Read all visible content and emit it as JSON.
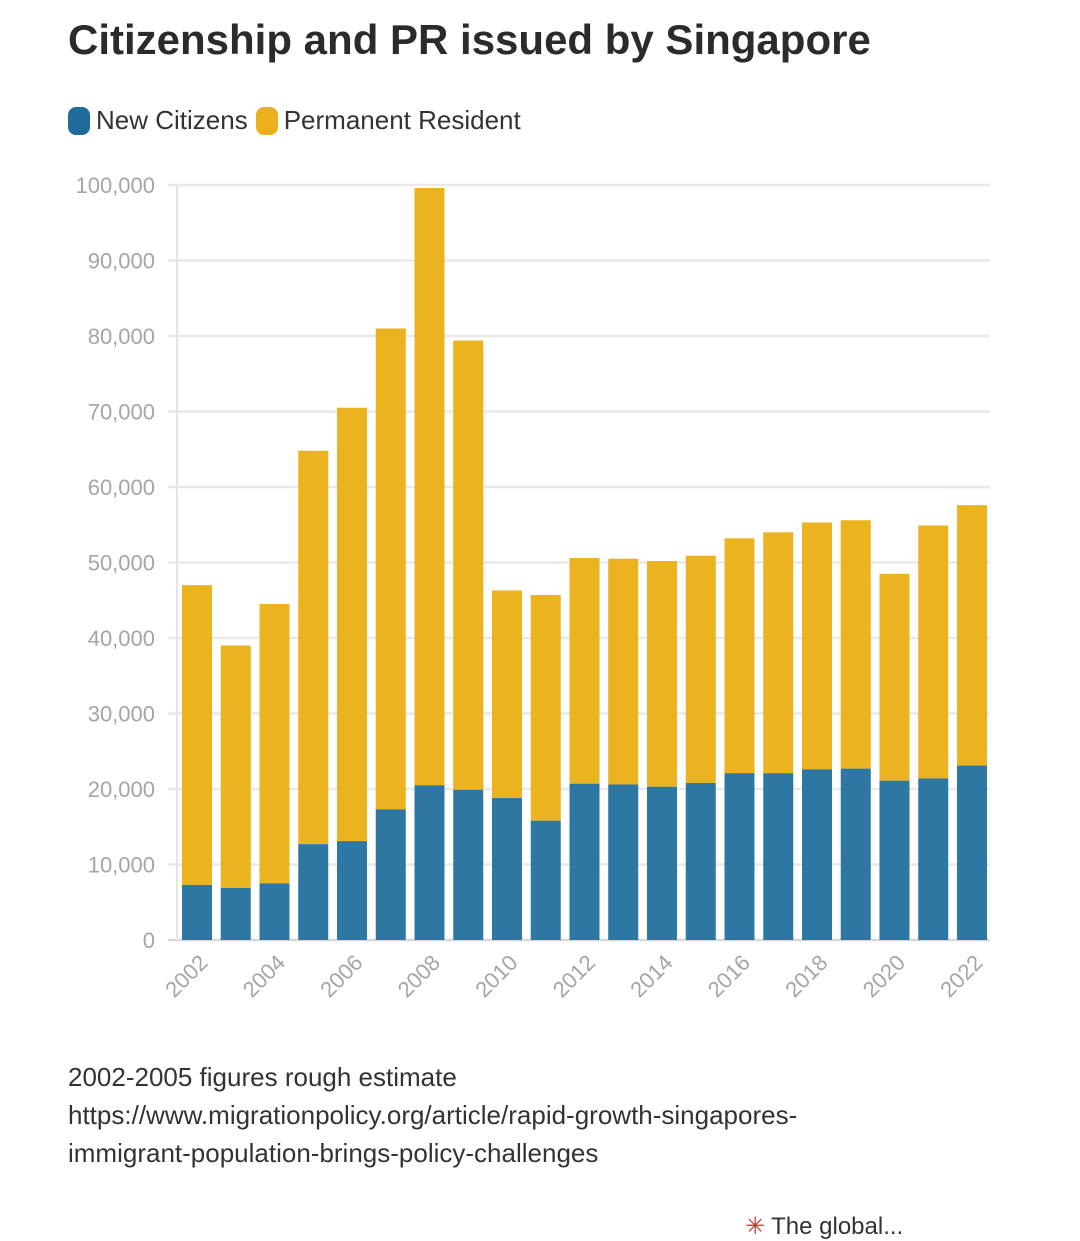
{
  "title": "Citizenship and PR issued by Singapore",
  "legend": [
    {
      "label": "New Citizens",
      "color": "#1f6b9a"
    },
    {
      "label": "Permanent Resident",
      "color": "#ecb01d"
    }
  ],
  "footer": {
    "note": "2002-2005 figures rough estimate",
    "source_line1": "https://www.migrationpolicy.org/article/rapid-growth-singapores-",
    "source_line2": "immigrant-population-brings-policy-challenges"
  },
  "watermark": {
    "text": "The global..."
  },
  "chart_data": {
    "type": "bar",
    "stacked": true,
    "title": "Citizenship and PR issued by Singapore",
    "xlabel": "",
    "ylabel": "",
    "ylim": [
      0,
      100000
    ],
    "yticks": [
      0,
      10000,
      20000,
      30000,
      40000,
      50000,
      60000,
      70000,
      80000,
      90000,
      100000
    ],
    "ytick_labels": [
      "0",
      "10,000",
      "20,000",
      "30,000",
      "40,000",
      "50,000",
      "60,000",
      "70,000",
      "80,000",
      "90,000",
      "100,000"
    ],
    "categories": [
      "2002",
      "2003",
      "2004",
      "2005",
      "2006",
      "2007",
      "2008",
      "2009",
      "2010",
      "2011",
      "2012",
      "2013",
      "2014",
      "2015",
      "2016",
      "2017",
      "2018",
      "2019",
      "2020",
      "2021",
      "2022"
    ],
    "xtick_labels": [
      "2002",
      "2004",
      "2006",
      "2008",
      "2010",
      "2012",
      "2014",
      "2016",
      "2018",
      "2020",
      "2022"
    ],
    "series": [
      {
        "name": "New Citizens",
        "color": "#2f77a3",
        "values": [
          7300,
          6900,
          7500,
          12700,
          13100,
          17300,
          20500,
          19900,
          18800,
          15800,
          20700,
          20600,
          20300,
          20800,
          22100,
          22100,
          22600,
          22700,
          21100,
          21400,
          23100
        ]
      },
      {
        "name": "Permanent Resident",
        "color": "#ecb320",
        "values": [
          39700,
          32100,
          37000,
          52100,
          57400,
          63700,
          79100,
          59500,
          27500,
          29900,
          29900,
          29900,
          29900,
          30100,
          31100,
          31900,
          32700,
          32900,
          27400,
          33500,
          34500
        ]
      }
    ],
    "grid": true,
    "legend_position": "top-left"
  }
}
